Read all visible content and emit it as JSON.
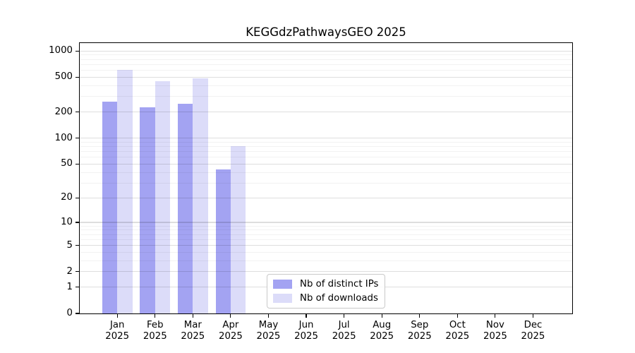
{
  "chart_data": {
    "type": "bar",
    "title": "KEGGdzPathwaysGEO 2025",
    "xlabel": "",
    "ylabel": "",
    "year": "2025",
    "categories": [
      "Jan",
      "Feb",
      "Mar",
      "Apr",
      "May",
      "Jun",
      "Jul",
      "Aug",
      "Sep",
      "Oct",
      "Nov",
      "Dec"
    ],
    "series": [
      {
        "name": "Nb of distinct IPs",
        "color": "#a3a3f2",
        "values": [
          261,
          227,
          249,
          43,
          0,
          0,
          0,
          0,
          0,
          0,
          0,
          0
        ]
      },
      {
        "name": "Nb of downloads",
        "color": "#dcdcf9",
        "values": [
          610,
          450,
          488,
          81,
          0,
          0,
          0,
          0,
          0,
          0,
          0,
          0
        ]
      }
    ],
    "yscale": "log10(value+1)",
    "yticks": [
      0,
      1,
      2,
      5,
      10,
      20,
      50,
      100,
      200,
      500,
      1000
    ],
    "yminorticks": [
      3,
      4,
      6,
      7,
      8,
      9,
      30,
      40,
      60,
      70,
      80,
      90,
      300,
      400,
      600,
      700,
      800,
      900
    ],
    "ylim": [
      0,
      1240
    ],
    "grid": "horizontal, major and minor, drawn over bars",
    "legend_position": "bottom-center"
  }
}
